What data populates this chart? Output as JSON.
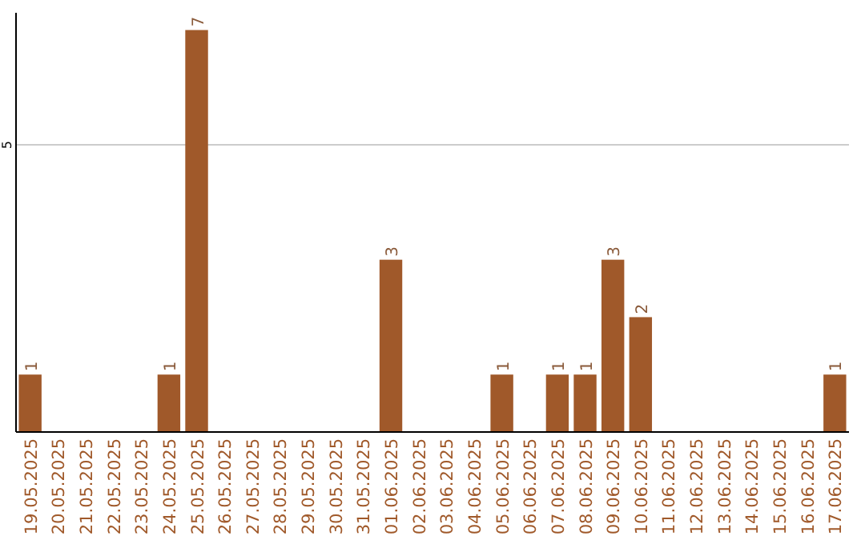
{
  "chart_data": {
    "type": "bar",
    "categories": [
      "19.05.2025",
      "20.05.2025",
      "21.05.2025",
      "22.05.2025",
      "23.05.2025",
      "24.05.2025",
      "25.05.2025",
      "26.05.2025",
      "27.05.2025",
      "28.05.2025",
      "29.05.2025",
      "30.05.2025",
      "31.05.2025",
      "01.06.2025",
      "02.06.2025",
      "03.06.2025",
      "04.06.2025",
      "05.06.2025",
      "06.06.2025",
      "07.06.2025",
      "08.06.2025",
      "09.06.2025",
      "10.06.2025",
      "11.06.2025",
      "12.06.2025",
      "13.06.2025",
      "14.06.2025",
      "15.06.2025",
      "16.06.2025",
      "17.06.2025"
    ],
    "values": [
      1,
      0,
      0,
      0,
      0,
      1,
      7,
      0,
      0,
      0,
      0,
      0,
      0,
      3,
      0,
      0,
      0,
      1,
      0,
      1,
      1,
      3,
      2,
      0,
      0,
      0,
      0,
      0,
      0,
      1
    ],
    "value_labels": [
      "1",
      null,
      null,
      null,
      null,
      "1",
      "7",
      null,
      null,
      null,
      null,
      null,
      null,
      "3",
      null,
      null,
      null,
      "1",
      null,
      "1",
      "1",
      "3",
      "2",
      null,
      null,
      null,
      null,
      null,
      null,
      "1"
    ],
    "color": "#a0592a",
    "ylim": [
      0,
      7.3
    ],
    "yticks": [
      5
    ],
    "grid": "y"
  }
}
